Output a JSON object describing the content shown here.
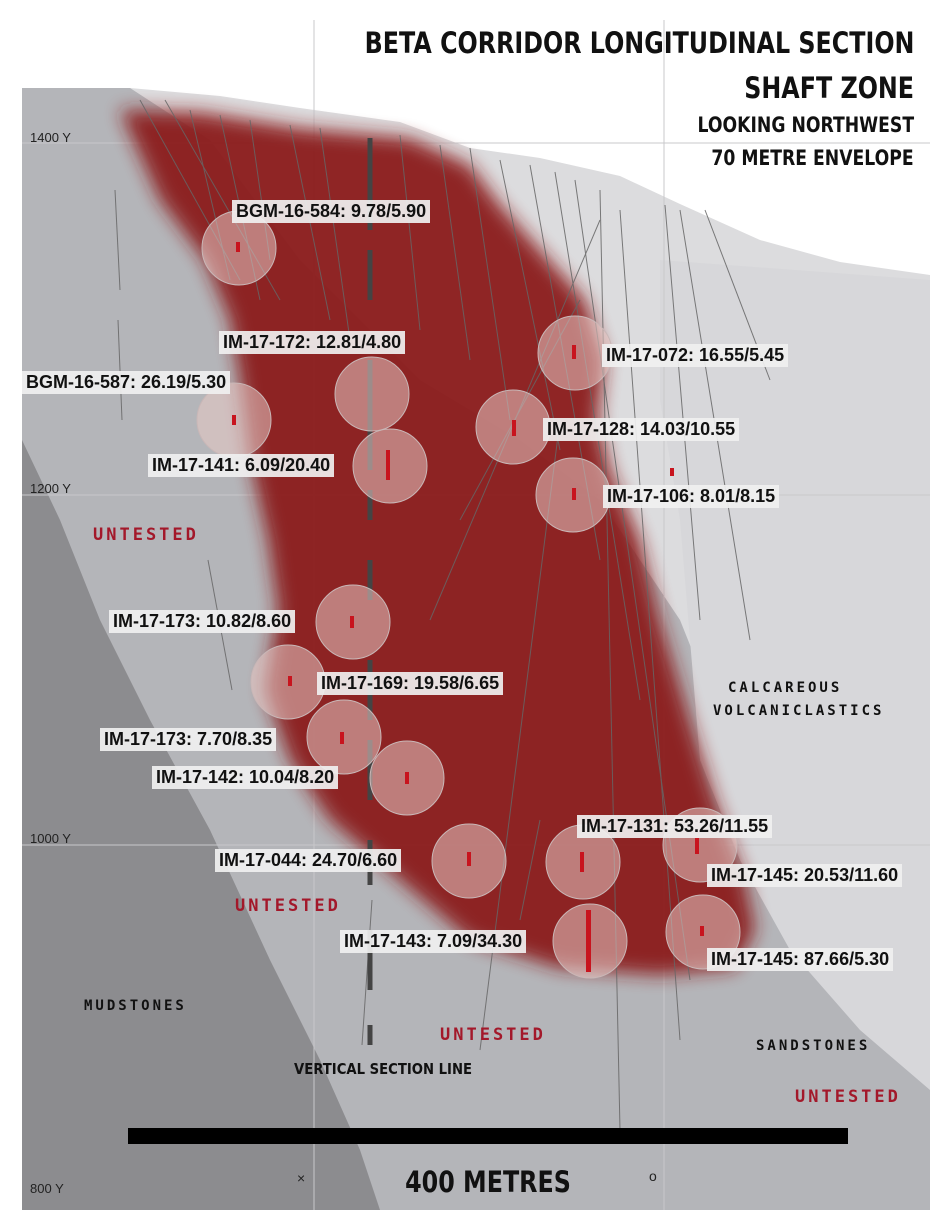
{
  "title": {
    "line1": "BETA CORRIDOR LONGITUDINAL SECTION",
    "line2": "SHAFT ZONE",
    "line3": "LOOKING NORTHWEST",
    "line4": "70 METRE ENVELOPE"
  },
  "elevations": [
    "1400 Y",
    "1200 Y",
    "1000 Y",
    "800 Y"
  ],
  "callouts": [
    "BGM-16-584: 9.78/5.90",
    "IM-17-172: 12.81/4.80",
    "IM-17-072: 16.55/5.45",
    "BGM-16-587: 26.19/5.30",
    "IM-17-128: 14.03/10.55",
    "IM-17-141: 6.09/20.40",
    "IM-17-106: 8.01/8.15",
    "IM-17-173: 10.82/8.60",
    "IM-17-169: 19.58/6.65",
    "IM-17-173: 7.70/8.35",
    "IM-17-142: 10.04/8.20",
    "IM-17-131: 53.26/11.55",
    "IM-17-044: 24.70/6.60",
    "IM-17-145: 20.53/11.60",
    "IM-17-143: 7.09/34.30",
    "IM-17-145: 87.66/5.30"
  ],
  "zones": {
    "untested_1": "UNTESTED",
    "untested_2": "UNTESTED",
    "untested_3": "UNTESTED",
    "untested_4": "UNTESTED",
    "calcareous_1": "CALCAREOUS",
    "calcareous_2": "VOLCANICLASTICS",
    "mudstones": "MUDSTONES",
    "sandstones": "SANDSTONES"
  },
  "section_line_label": "VERTICAL SECTION LINE",
  "scale_label": "400 METRES",
  "section_marks": {
    "x_mark": "×",
    "o_mark": "o"
  },
  "colors": {
    "envelope": "#8b1c1c",
    "intercept_halo": "#e8c8c4",
    "mudstone": "#8c8c8f",
    "calcareous": "#b4b5b9",
    "sandstone_upper": "#dcdcde",
    "drill_trace": "#555555",
    "untested_text": "#a3182a"
  }
}
